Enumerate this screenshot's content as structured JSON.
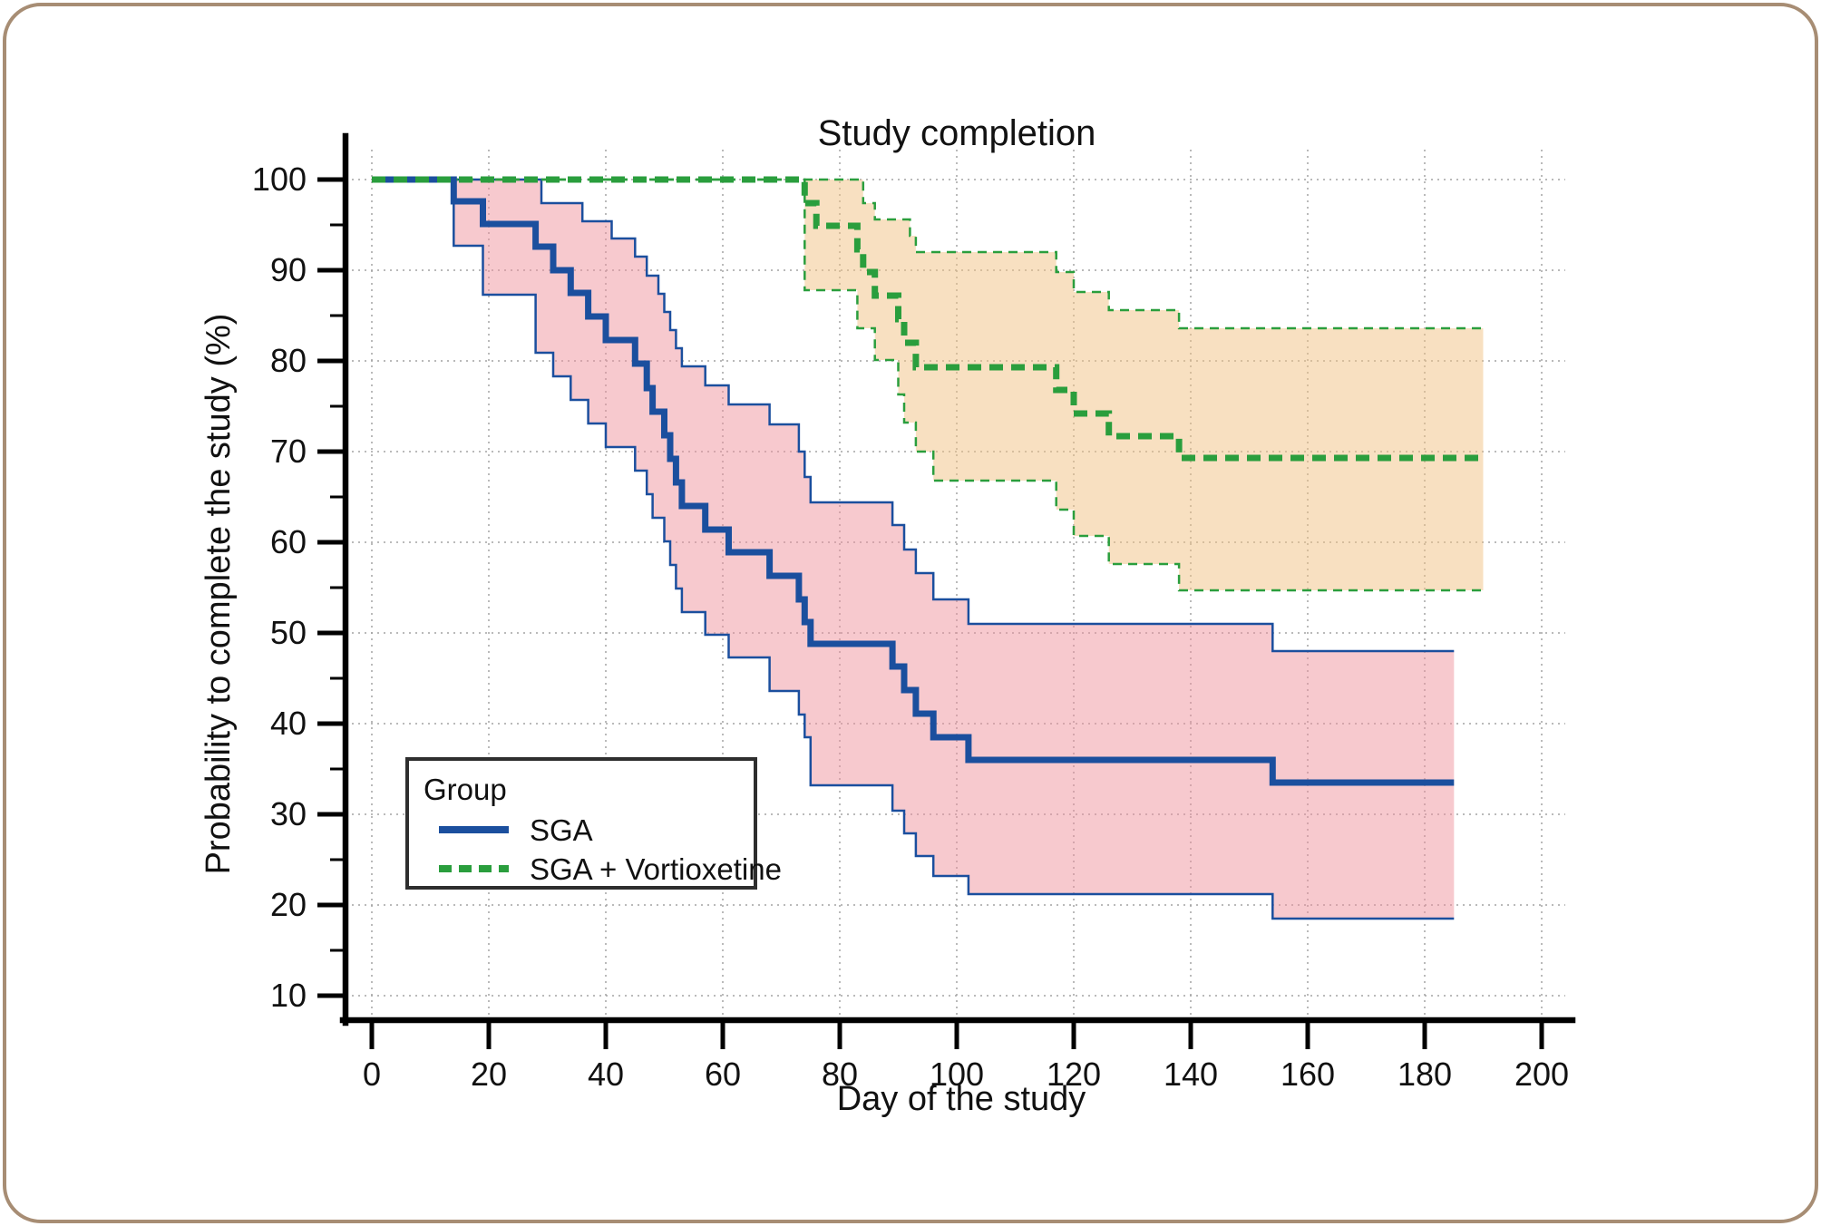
{
  "page": {
    "background": "#ffffff",
    "frame_border_color": "#a78d74"
  },
  "chart_data": {
    "type": "line",
    "subtype": "kaplan-meier-step-with-confidence-bands",
    "title": "Study completion",
    "xlabel": "Day of the study",
    "ylabel": "Probability to complete the study (%)",
    "grid": true,
    "grid_color": "#a3a3a3",
    "axis_color": "#000000",
    "text_color": "#111111",
    "x_axis": {
      "range": [
        0,
        200
      ],
      "ticks": [
        0,
        20,
        40,
        60,
        80,
        100,
        120,
        140,
        160,
        180,
        200
      ]
    },
    "y_axis": {
      "range": [
        10,
        100
      ],
      "ticks": [
        10,
        20,
        30,
        40,
        50,
        60,
        70,
        80,
        90,
        100
      ],
      "minor_tick_step": 5
    },
    "legend": {
      "title": "Group",
      "position": "lower left"
    },
    "series": [
      {
        "name": "SGA",
        "line_color": "#1b4f9e",
        "line_style": "solid",
        "band_color": "#f0949e",
        "end_day": 185,
        "points": [
          [
            0,
            100
          ],
          [
            14,
            97.6
          ],
          [
            19,
            95.1
          ],
          [
            28,
            92.6
          ],
          [
            31,
            90
          ],
          [
            34,
            87.5
          ],
          [
            37,
            84.9
          ],
          [
            40,
            82.3
          ],
          [
            45,
            79.7
          ],
          [
            47,
            77
          ],
          [
            48,
            74.4
          ],
          [
            50,
            71.8
          ],
          [
            51,
            69.2
          ],
          [
            52,
            66.6
          ],
          [
            53,
            64
          ],
          [
            57,
            61.4
          ],
          [
            61,
            58.9
          ],
          [
            68,
            56.3
          ],
          [
            73,
            53.7
          ],
          [
            74,
            51.2
          ],
          [
            75,
            48.8
          ],
          [
            89,
            46.3
          ],
          [
            91,
            43.7
          ],
          [
            93,
            41.1
          ],
          [
            96,
            38.5
          ],
          [
            102,
            36
          ],
          [
            154,
            33.5
          ]
        ],
        "ci_upper": [
          [
            0,
            100
          ],
          [
            29,
            97.4
          ],
          [
            36,
            95.4
          ],
          [
            41,
            93.5
          ],
          [
            45,
            91.5
          ],
          [
            47,
            89.4
          ],
          [
            49,
            87.4
          ],
          [
            50,
            85.4
          ],
          [
            51,
            83.4
          ],
          [
            52,
            81.4
          ],
          [
            53,
            79.4
          ],
          [
            57,
            77.3
          ],
          [
            61,
            75.2
          ],
          [
            68,
            73
          ],
          [
            73,
            70
          ],
          [
            74,
            67.2
          ],
          [
            75,
            64.4
          ],
          [
            89,
            61.9
          ],
          [
            91,
            59.2
          ],
          [
            93,
            56.6
          ],
          [
            96,
            53.7
          ],
          [
            102,
            51
          ],
          [
            154,
            48
          ]
        ],
        "ci_lower": [
          [
            0,
            100
          ],
          [
            14,
            92.7
          ],
          [
            19,
            87.3
          ],
          [
            28,
            80.9
          ],
          [
            31,
            78.3
          ],
          [
            34,
            75.7
          ],
          [
            37,
            73.1
          ],
          [
            40,
            70.5
          ],
          [
            45,
            67.9
          ],
          [
            47,
            65.3
          ],
          [
            48,
            62.7
          ],
          [
            50,
            60.1
          ],
          [
            51,
            57.5
          ],
          [
            52,
            54.9
          ],
          [
            53,
            52.3
          ],
          [
            57,
            49.8
          ],
          [
            61,
            47.3
          ],
          [
            68,
            43.6
          ],
          [
            73,
            41
          ],
          [
            74,
            38.5
          ],
          [
            75,
            33.2
          ],
          [
            89,
            30.4
          ],
          [
            91,
            27.9
          ],
          [
            93,
            25.4
          ],
          [
            96,
            23.2
          ],
          [
            102,
            21.2
          ],
          [
            154,
            18.5
          ]
        ]
      },
      {
        "name": "SGA + Vortioxetine",
        "line_color": "#2a9e3d",
        "line_style": "dashed",
        "band_color": "#f2c183",
        "end_day": 190,
        "points": [
          [
            0,
            100
          ],
          [
            74,
            97.4
          ],
          [
            76,
            94.9
          ],
          [
            83,
            92.3
          ],
          [
            84,
            89.8
          ],
          [
            86,
            87.2
          ],
          [
            90,
            84.6
          ],
          [
            91,
            82
          ],
          [
            93,
            79.3
          ],
          [
            117,
            76.8
          ],
          [
            120,
            74.2
          ],
          [
            126,
            71.7
          ],
          [
            138,
            69.3
          ]
        ],
        "ci_upper": [
          [
            0,
            100
          ],
          [
            84,
            97.4
          ],
          [
            86,
            95.6
          ],
          [
            92,
            93.8
          ],
          [
            93,
            92
          ],
          [
            117,
            89.8
          ],
          [
            120,
            87.6
          ],
          [
            126,
            85.6
          ],
          [
            138,
            83.6
          ]
        ],
        "ci_lower": [
          [
            0,
            100
          ],
          [
            74,
            87.8
          ],
          [
            83,
            83.6
          ],
          [
            86,
            80.1
          ],
          [
            90,
            76.3
          ],
          [
            91,
            73.2
          ],
          [
            93,
            70
          ],
          [
            96,
            66.8
          ],
          [
            117,
            63.6
          ],
          [
            120,
            60.7
          ],
          [
            126,
            57.6
          ],
          [
            138,
            54.7
          ]
        ]
      }
    ]
  }
}
